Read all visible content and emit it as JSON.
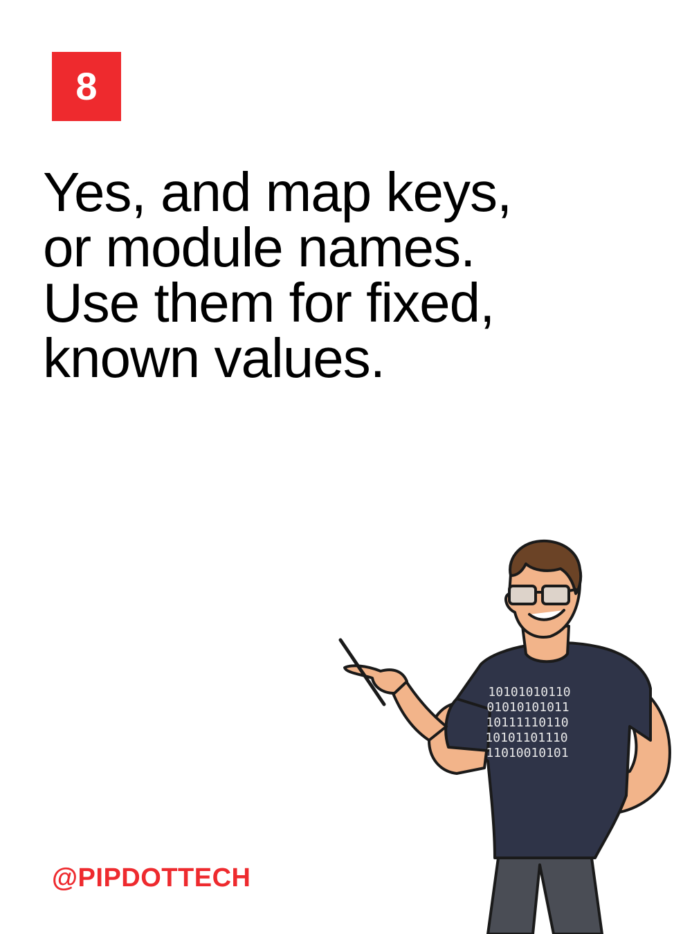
{
  "slide": {
    "number": "8",
    "headline": "Yes, and map keys, or module names. Use them for fixed, known values.",
    "handle": "@PIPDOTTECH"
  },
  "illustration": {
    "shirt_binary": [
      "10101010110",
      "01010101011",
      "10111110110",
      "10101101110",
      "11010010101"
    ]
  },
  "colors": {
    "accent": "#ee2a2e",
    "text": "#000000",
    "shirt": "#2f3448",
    "skin": "#f2b48a",
    "pants": "#4a4d55",
    "hair": "#6b4326"
  }
}
